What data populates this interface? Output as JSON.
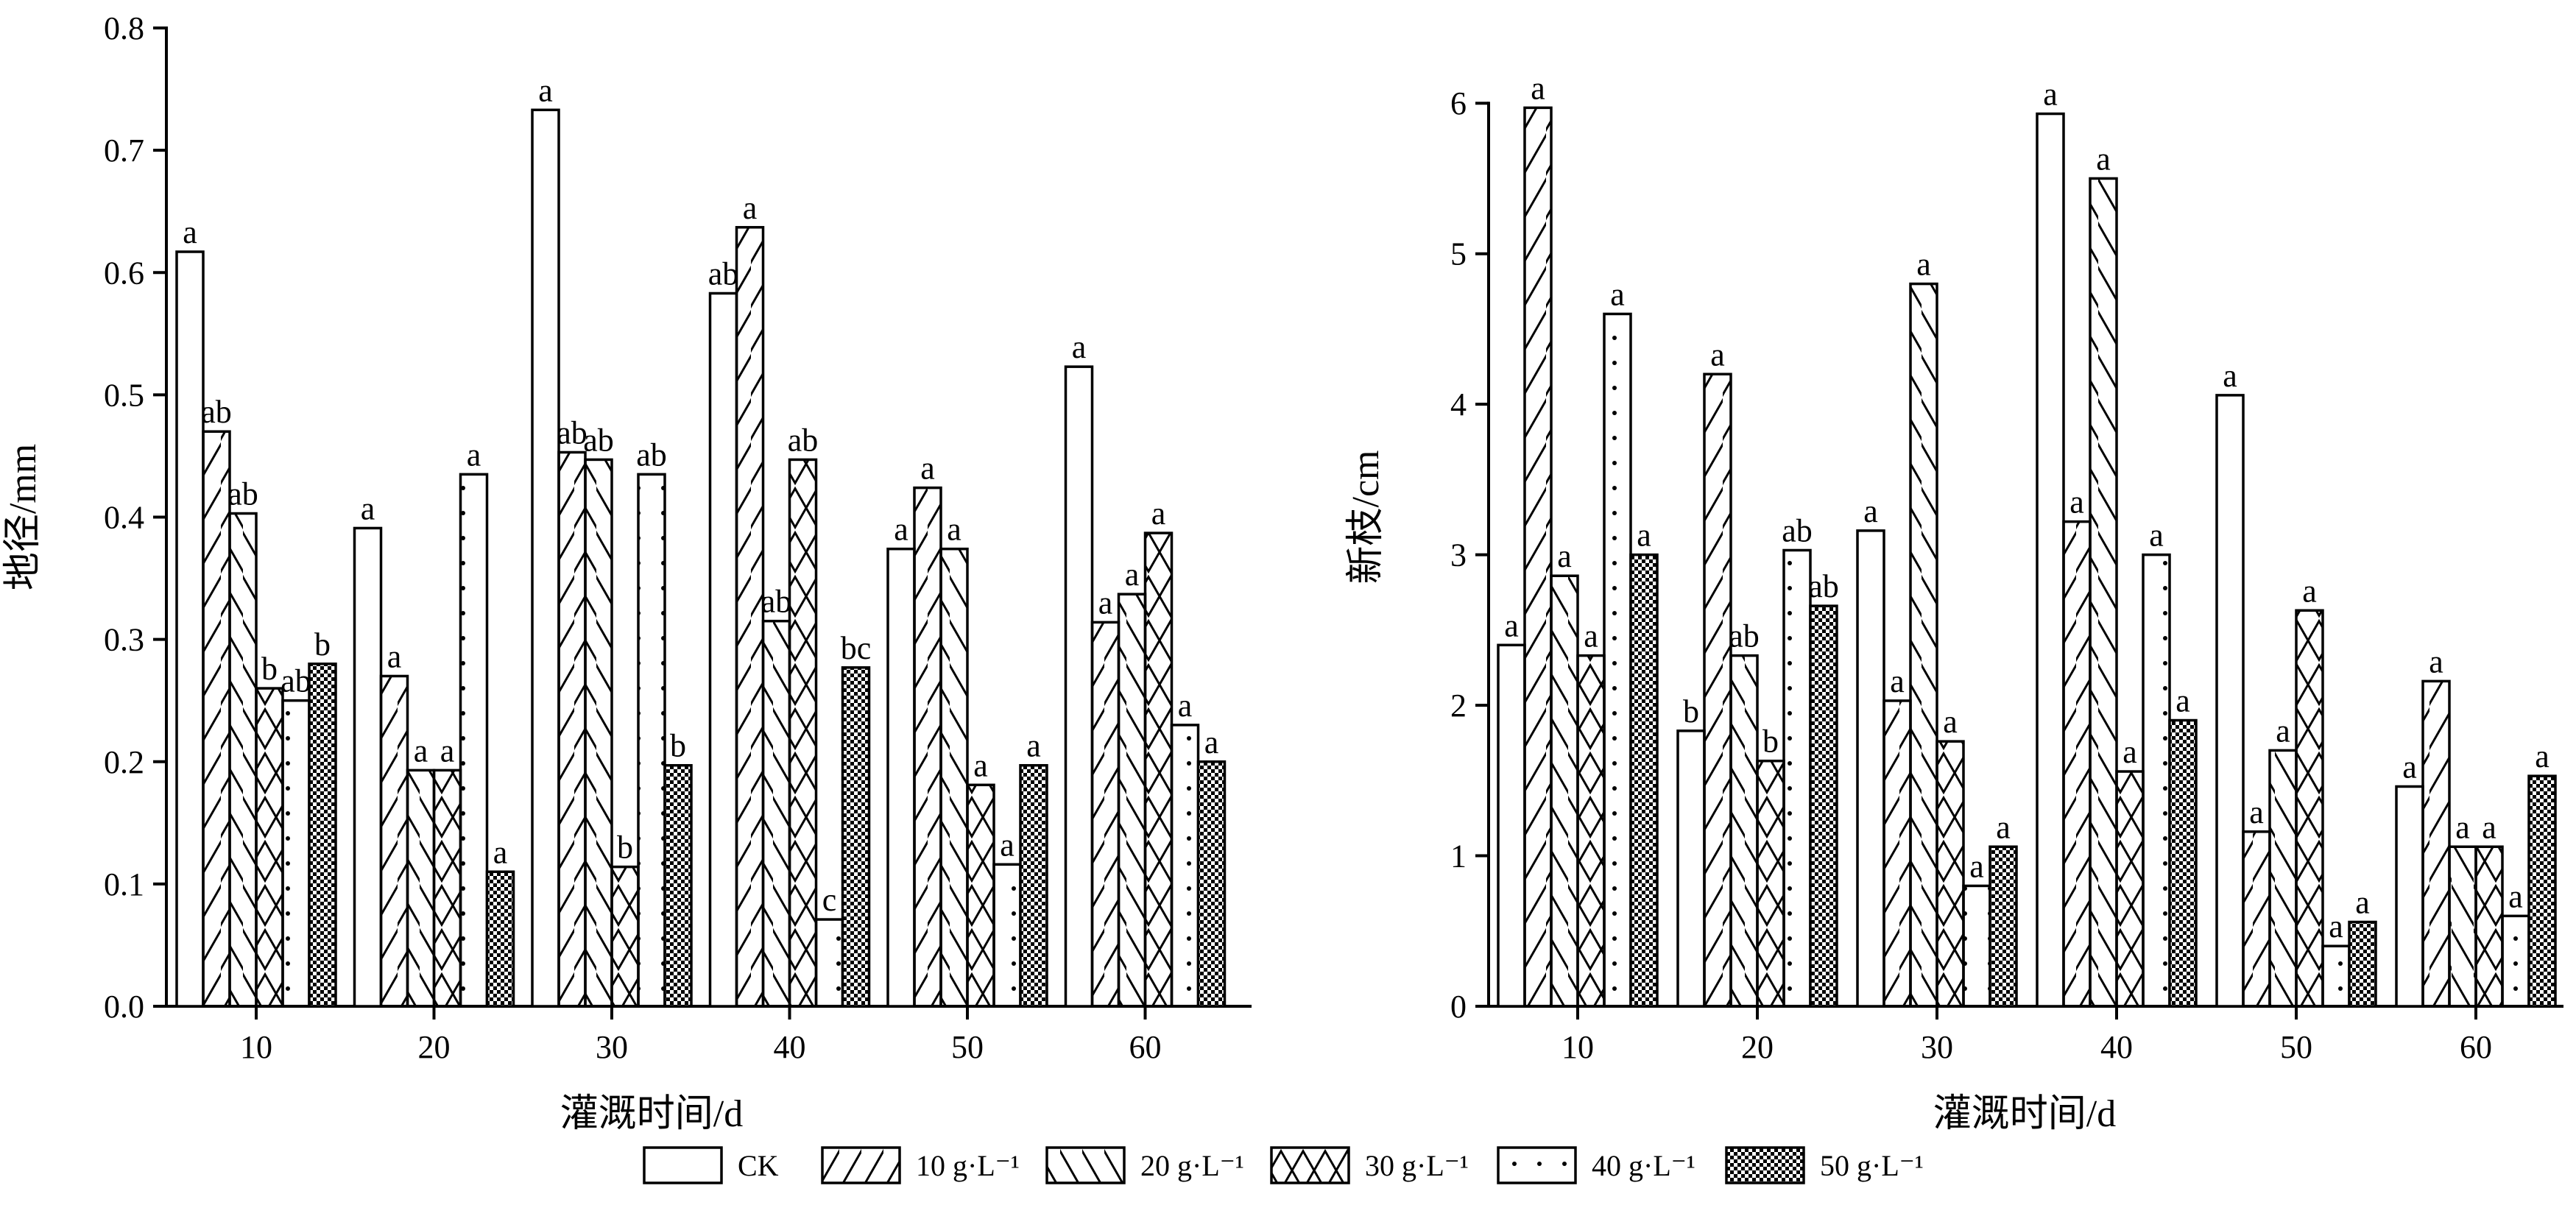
{
  "legend": [
    {
      "label": "CK",
      "pattern": "blank"
    },
    {
      "label": "10 g·L⁻¹",
      "pattern": "hatch-forward"
    },
    {
      "label": "20 g·L⁻¹",
      "pattern": "hatch-back"
    },
    {
      "label": "30 g·L⁻¹",
      "pattern": "crosshatch"
    },
    {
      "label": "40 g·L⁻¹",
      "pattern": "dots"
    },
    {
      "label": "50 g·L⁻¹",
      "pattern": "checker"
    }
  ],
  "chart_data": [
    {
      "type": "bar",
      "xlabel": "灌溉时间/d",
      "ylabel": "地径/mm",
      "categories": [
        "10",
        "20",
        "30",
        "40",
        "50",
        "60"
      ],
      "ylim": [
        0,
        0.8
      ],
      "yticks": [
        "0.0",
        "0.1",
        "0.2",
        "0.3",
        "0.4",
        "0.5",
        "0.6",
        "0.7",
        "0.8"
      ],
      "series": [
        {
          "name": "CK",
          "values": [
            0.617,
            0.391,
            0.733,
            0.583,
            0.374,
            0.523
          ],
          "labels": [
            "a",
            "a",
            "a",
            "ab",
            "a",
            "a"
          ]
        },
        {
          "name": "10 g·L⁻¹",
          "values": [
            0.47,
            0.27,
            0.453,
            0.637,
            0.424,
            0.314
          ],
          "labels": [
            "ab",
            "a",
            "ab",
            "a",
            "a",
            "a"
          ]
        },
        {
          "name": "20 g·L⁻¹",
          "values": [
            0.403,
            0.193,
            0.447,
            0.315,
            0.374,
            0.337
          ],
          "labels": [
            "ab",
            "a",
            "ab",
            "ab",
            "a",
            "a"
          ]
        },
        {
          "name": "30 g·L⁻¹",
          "values": [
            0.26,
            0.193,
            0.114,
            0.447,
            0.181,
            0.387
          ],
          "labels": [
            "b",
            "a",
            "b",
            "ab",
            "a",
            "a"
          ]
        },
        {
          "name": "40 g·L⁻¹",
          "values": [
            0.25,
            0.435,
            0.435,
            0.071,
            0.116,
            0.23
          ],
          "labels": [
            "ab",
            "a",
            "ab",
            "c",
            "a",
            "a"
          ]
        },
        {
          "name": "50 g·L⁻¹",
          "values": [
            0.28,
            0.11,
            0.197,
            0.277,
            0.197,
            0.2
          ],
          "labels": [
            "b",
            "a",
            "b",
            "bc",
            "a",
            "a"
          ]
        }
      ]
    },
    {
      "type": "bar",
      "xlabel": "灌溉时间/d",
      "ylabel": "新枝/cm",
      "categories": [
        "10",
        "20",
        "30",
        "40",
        "50",
        "60"
      ],
      "ylim": [
        0,
        6.5
      ],
      "yticks": [
        "0",
        "1",
        "2",
        "3",
        "4",
        "5",
        "6"
      ],
      "series": [
        {
          "name": "CK",
          "values": [
            2.4,
            1.83,
            3.16,
            5.93,
            4.06,
            1.46
          ],
          "labels": [
            "a",
            "b",
            "a",
            "a",
            "a",
            "a"
          ]
        },
        {
          "name": "10 g·L⁻¹",
          "values": [
            5.97,
            4.2,
            2.03,
            3.22,
            1.16,
            2.16
          ],
          "labels": [
            "a",
            "a",
            "a",
            "a",
            "a",
            "a"
          ]
        },
        {
          "name": "20 g·L⁻¹",
          "values": [
            2.86,
            2.33,
            4.8,
            5.5,
            1.7,
            1.06
          ],
          "labels": [
            "a",
            "ab",
            "a",
            "a",
            "a",
            "a"
          ]
        },
        {
          "name": "30 g·L⁻¹",
          "values": [
            2.33,
            1.63,
            1.76,
            1.56,
            2.63,
            1.06
          ],
          "labels": [
            "a",
            "b",
            "a",
            "a",
            "a",
            "a"
          ]
        },
        {
          "name": "40 g·L⁻¹",
          "values": [
            4.6,
            3.03,
            0.8,
            3.0,
            0.4,
            0.6
          ],
          "labels": [
            "a",
            "ab",
            "a",
            "a",
            "a",
            "a"
          ]
        },
        {
          "name": "50 g·L⁻¹",
          "values": [
            3.0,
            2.66,
            1.06,
            1.9,
            0.56,
            1.53
          ],
          "labels": [
            "a",
            "ab",
            "a",
            "a",
            "a",
            "a"
          ]
        }
      ]
    }
  ]
}
